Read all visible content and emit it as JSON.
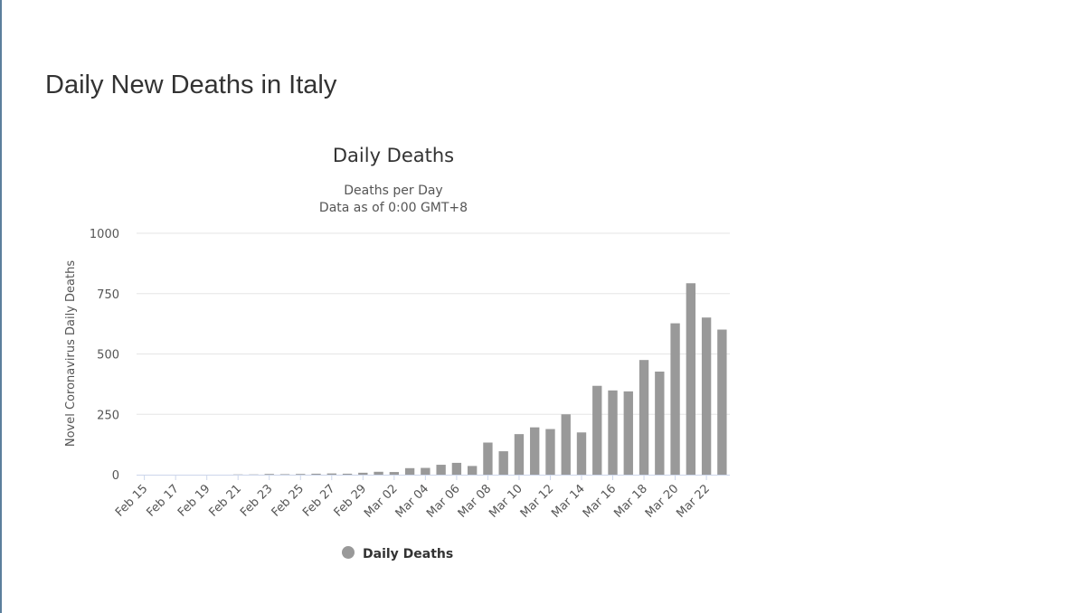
{
  "page": {
    "title": "Daily New Deaths in Italy"
  },
  "chart_data": {
    "type": "bar",
    "title": "Daily Deaths",
    "subtitle_lines": [
      "Deaths per Day",
      "Data as of 0:00 GMT+8"
    ],
    "xlabel": "",
    "ylabel": "Novel Coronavirus Daily Deaths",
    "ylim": [
      0,
      1000
    ],
    "yticks": [
      0,
      250,
      500,
      750,
      1000
    ],
    "grid": true,
    "legend_position": "bottom",
    "categories": [
      "Feb 15",
      "Feb 16",
      "Feb 17",
      "Feb 18",
      "Feb 19",
      "Feb 20",
      "Feb 21",
      "Feb 22",
      "Feb 23",
      "Feb 24",
      "Feb 25",
      "Feb 26",
      "Feb 27",
      "Feb 28",
      "Feb 29",
      "Mar 01",
      "Mar 02",
      "Mar 03",
      "Mar 04",
      "Mar 05",
      "Mar 06",
      "Mar 07",
      "Mar 08",
      "Mar 09",
      "Mar 10",
      "Mar 11",
      "Mar 12",
      "Mar 13",
      "Mar 14",
      "Mar 15",
      "Mar 16",
      "Mar 17",
      "Mar 18",
      "Mar 19",
      "Mar 20",
      "Mar 21",
      "Mar 22",
      "Mar 23"
    ],
    "tick_labels_shown": [
      "Feb 15",
      "Feb 17",
      "Feb 19",
      "Feb 21",
      "Feb 23",
      "Feb 25",
      "Feb 27",
      "Feb 29",
      "Mar 02",
      "Mar 04",
      "Mar 06",
      "Mar 08",
      "Mar 10",
      "Mar 12",
      "Mar 14",
      "Mar 16",
      "Mar 18",
      "Mar 20",
      "Mar 22"
    ],
    "series": [
      {
        "name": "Daily Deaths",
        "color": "#999999",
        "values": [
          0,
          0,
          0,
          0,
          0,
          0,
          1,
          1,
          3,
          2,
          3,
          4,
          5,
          4,
          8,
          12,
          11,
          27,
          28,
          41,
          49,
          36,
          133,
          97,
          168,
          196,
          189,
          250,
          175,
          368,
          349,
          345,
          475,
          427,
          627,
          793,
          651,
          601
        ]
      }
    ]
  }
}
